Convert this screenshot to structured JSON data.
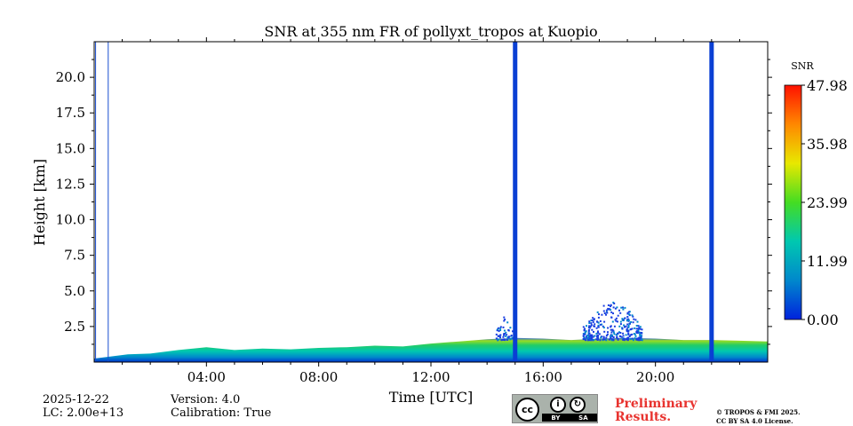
{
  "chart_data": {
    "type": "heatmap",
    "title": "SNR at 355 nm FR of pollyxt_tropos at Kuopio",
    "xlabel": "Time [UTC]",
    "ylabel": "Height [km]",
    "xlim_hours": [
      0,
      24
    ],
    "ylim_km": [
      0,
      22.5
    ],
    "x_ticks": [
      {
        "hour": 4,
        "label": "04:00"
      },
      {
        "hour": 8,
        "label": "08:00"
      },
      {
        "hour": 12,
        "label": "12:00"
      },
      {
        "hour": 16,
        "label": "16:00"
      },
      {
        "hour": 20,
        "label": "20:00"
      }
    ],
    "y_ticks": [
      {
        "km": 2.5,
        "label": "2.5"
      },
      {
        "km": 5.0,
        "label": "5.0"
      },
      {
        "km": 7.5,
        "label": "7.5"
      },
      {
        "km": 10.0,
        "label": "10.0"
      },
      {
        "km": 12.5,
        "label": "12.5"
      },
      {
        "km": 15.0,
        "label": "15.0"
      },
      {
        "km": 17.5,
        "label": "17.5"
      },
      {
        "km": 20.0,
        "label": "20.0"
      }
    ],
    "colorbar": {
      "label": "SNR",
      "range": [
        0.0,
        47.98
      ],
      "ticks": [
        "47.98",
        "35.98",
        "23.99",
        "11.99",
        "0.00"
      ],
      "colors": [
        "#0022dd",
        "#0088cc",
        "#00c8b0",
        "#44dd22",
        "#e8e800",
        "#ff8800",
        "#ff1100"
      ]
    },
    "layer_top_km": [
      {
        "hour": 0.0,
        "km": 0.25
      },
      {
        "hour": 1.2,
        "km": 0.55
      },
      {
        "hour": 2.0,
        "km": 0.6
      },
      {
        "hour": 3.0,
        "km": 0.85
      },
      {
        "hour": 4.0,
        "km": 1.05
      },
      {
        "hour": 5.0,
        "km": 0.85
      },
      {
        "hour": 6.0,
        "km": 0.95
      },
      {
        "hour": 7.0,
        "km": 0.9
      },
      {
        "hour": 8.0,
        "km": 1.0
      },
      {
        "hour": 9.0,
        "km": 1.05
      },
      {
        "hour": 10.0,
        "km": 1.15
      },
      {
        "hour": 11.0,
        "km": 1.1
      },
      {
        "hour": 12.0,
        "km": 1.3
      },
      {
        "hour": 13.0,
        "km": 1.45
      },
      {
        "hour": 14.0,
        "km": 1.6
      },
      {
        "hour": 15.0,
        "km": 1.7
      },
      {
        "hour": 16.0,
        "km": 1.65
      },
      {
        "hour": 17.0,
        "km": 1.55
      },
      {
        "hour": 18.0,
        "km": 1.65
      },
      {
        "hour": 19.0,
        "km": 1.7
      },
      {
        "hour": 20.0,
        "km": 1.65
      },
      {
        "hour": 21.0,
        "km": 1.55
      },
      {
        "hour": 22.0,
        "km": 1.55
      },
      {
        "hour": 23.0,
        "km": 1.5
      },
      {
        "hour": 24.0,
        "km": 1.45
      }
    ],
    "cloud_patches": [
      {
        "hour_start": 14.3,
        "hour_end": 14.9,
        "base_km": 1.6,
        "top_km": 3.3,
        "snr": 3
      },
      {
        "hour_start": 17.4,
        "hour_end": 19.5,
        "base_km": 1.6,
        "top_km": 4.3,
        "snr": 3
      }
    ],
    "no_data_lines_hours": [
      0.05,
      0.5
    ],
    "gap_bars_hours": [
      15.0,
      22.0
    ]
  },
  "footer": {
    "date": "2025-12-22",
    "lc": "LC: 2.00e+13",
    "version": "Version: 4.0",
    "calibration": "Calibration: True",
    "preliminary_line1": "Preliminary",
    "preliminary_line2": "Results.",
    "copyright_line1": "© TROPOS & FMI 2025.",
    "copyright_line2": "CC BY SA 4.0 License.",
    "cc_badge": {
      "cc": "cc",
      "by": "BY",
      "sa": "SA"
    }
  }
}
